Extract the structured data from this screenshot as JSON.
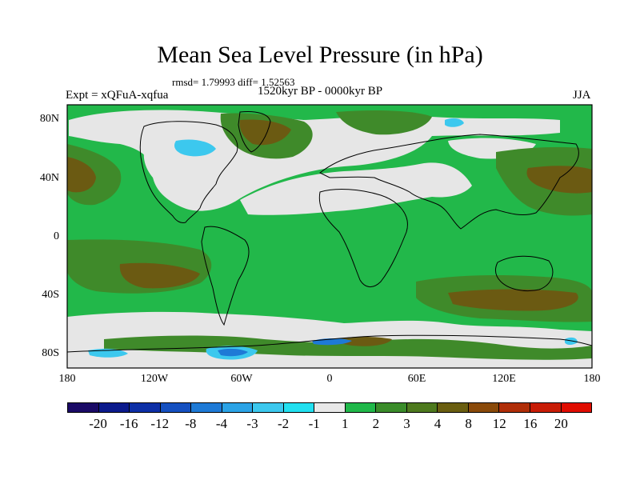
{
  "title": "Mean Sea Level Pressure (in hPa)",
  "stats": "rmsd= 1.79993 diff= 1.52563",
  "experiment": "Expt = xQFuA-xqfua",
  "period": "1520kyr BP - 0000kyr BP",
  "season": "JJA",
  "lat_labels": [
    "80N",
    "40N",
    "0",
    "40S",
    "80S"
  ],
  "lon_labels": [
    "180",
    "120W",
    "60W",
    "0",
    "60E",
    "120E",
    "180"
  ],
  "colorbar": {
    "labels": [
      "-20",
      "-16",
      "-12",
      "-8",
      "-4",
      "-3",
      "-2",
      "-1",
      "1",
      "2",
      "3",
      "4",
      "8",
      "12",
      "16",
      "20"
    ],
    "colors": [
      "#1a0a66",
      "#0b1a8c",
      "#0d2fa6",
      "#1550c0",
      "#1e7ad6",
      "#2ba3e6",
      "#3cc8ee",
      "#22e0f0",
      "#e8e8e8",
      "#20b84a",
      "#3a8c2a",
      "#4e7a1e",
      "#6a5e10",
      "#8a4a0a",
      "#b02e08",
      "#c81c06",
      "#e00c00"
    ]
  },
  "colors": {
    "land_sea_base": "#22b84a",
    "near_zero": "#e6e6e6",
    "positive_mid": "#3f8a2a",
    "positive_high": "#6b5a12",
    "negative_light": "#3cc8ee",
    "negative_strong": "#1e7ad6"
  }
}
